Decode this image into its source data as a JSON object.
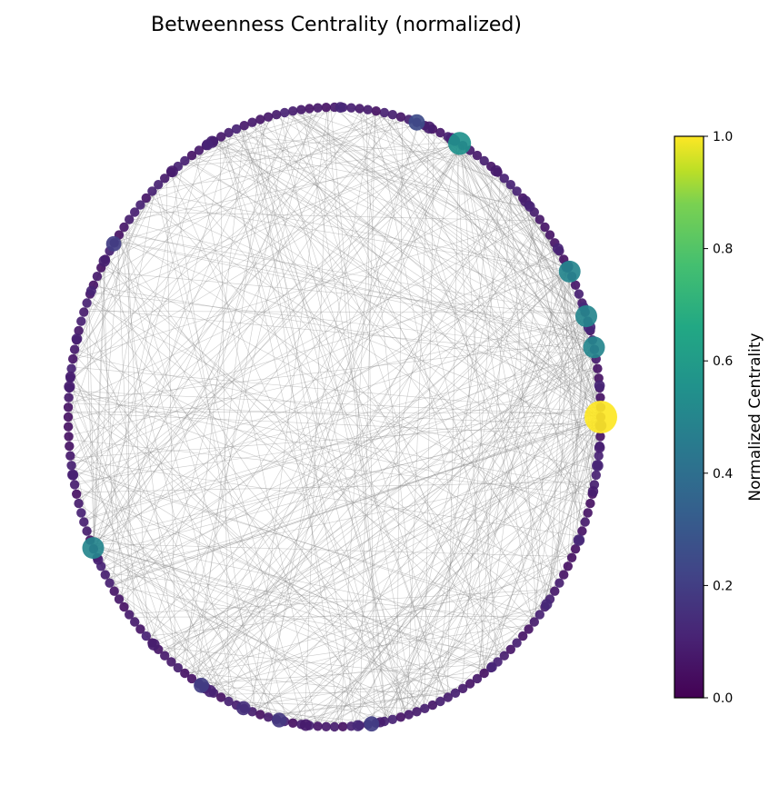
{
  "chart_data": {
    "type": "network",
    "layout": "circular",
    "title": "Betweenness Centrality (normalized)",
    "node_count": 200,
    "colormap": "viridis",
    "colorbar": {
      "label": "Normalized Centrality",
      "range": [
        0.0,
        1.0
      ],
      "ticks": [
        "0.0",
        "0.2",
        "0.4",
        "0.6",
        "0.8",
        "1.0"
      ]
    },
    "edge_color": "#8c8c8c",
    "highlighted_nodes": [
      {
        "angle_deg": 0,
        "centrality": 1.0
      },
      {
        "angle_deg": 13,
        "centrality": 0.5
      },
      {
        "angle_deg": 19,
        "centrality": 0.5
      },
      {
        "angle_deg": 28,
        "centrality": 0.5
      },
      {
        "angle_deg": 62,
        "centrality": 0.55
      },
      {
        "angle_deg": 205,
        "centrality": 0.5
      },
      {
        "angle_deg": 72,
        "centrality": 0.25
      },
      {
        "angle_deg": 146,
        "centrality": 0.2
      },
      {
        "angle_deg": 278,
        "centrality": 0.2
      },
      {
        "angle_deg": 240,
        "centrality": 0.2
      },
      {
        "angle_deg": 258,
        "centrality": 0.18
      },
      {
        "angle_deg": 250,
        "centrality": 0.15
      }
    ]
  }
}
